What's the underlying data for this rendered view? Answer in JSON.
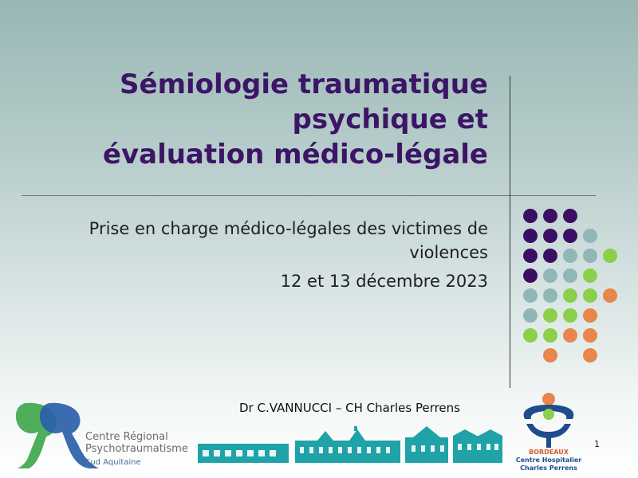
{
  "title": {
    "line1": "Sémiologie traumatique",
    "line2": "psychique et",
    "line3": "évaluation médico-légale"
  },
  "subtitle": {
    "line1": "Prise en charge médico-légales des victimes de",
    "line2": "violences",
    "date": "12 et 13 décembre 2023"
  },
  "author": "Dr C.VANNUCCI – CH Charles Perrens",
  "page_number": "1",
  "logo_left": {
    "line1": "Centre Régional",
    "line2": "Psychotraumatisme",
    "line3": "Sud Aquitaine"
  },
  "logo_right": {
    "city": "BORDEAUX",
    "line1": "Centre Hospitalier",
    "line2": "Charles Perrens"
  },
  "colors": {
    "title": "#3d1566",
    "dot_purple": "#3a0f63",
    "dot_gray": "#91b6b7",
    "dot_green": "#8ccf4a",
    "dot_orange": "#e8864b",
    "logo_green": "#4fae5a",
    "logo_blue": "#2a5fa8",
    "buildings": "#1fa3a8"
  },
  "dot_grid": [
    [
      "P",
      "P",
      "P",
      "",
      "",
      ""
    ],
    [
      "P",
      "P",
      "P",
      "G",
      "",
      ""
    ],
    [
      "P",
      "P",
      "G",
      "G",
      "L",
      ""
    ],
    [
      "P",
      "G",
      "G",
      "L",
      "",
      ""
    ],
    [
      "G",
      "G",
      "L",
      "L",
      "O",
      ""
    ],
    [
      "G",
      "L",
      "L",
      "O",
      "",
      ""
    ],
    [
      "L",
      "L",
      "O",
      "O",
      "",
      ""
    ],
    [
      "",
      "O",
      "",
      "O",
      "",
      ""
    ]
  ]
}
